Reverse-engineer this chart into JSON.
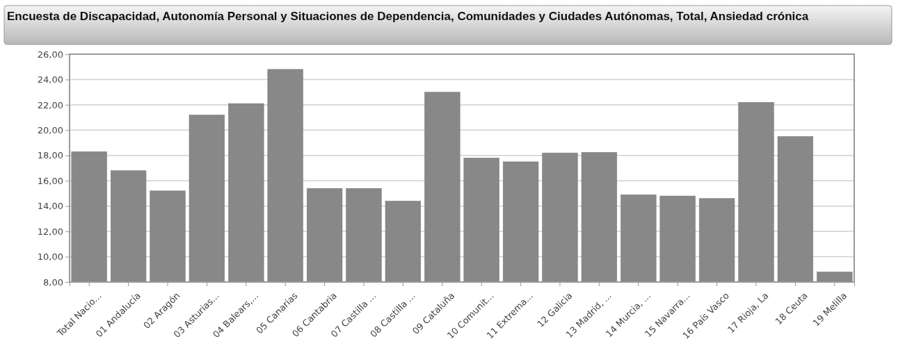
{
  "chart_data": {
    "type": "bar",
    "title": "Encuesta de Discapacidad, Autonomía Personal y Situaciones de Dependencia, Comunidades y Ciudades Autónomas, Total, Ansiedad crónica",
    "categories": [
      "Total Nacio...",
      "01 Andalucía",
      "02 Aragón",
      "03 Asturias...",
      "04 Balears,...",
      "05 Canarias",
      "06 Cantabria",
      "07 Castilla ...",
      "08 Castilla ...",
      "09 Cataluña",
      "10 Comunit...",
      "11 Extrema...",
      "12 Galicia",
      "13 Madrid, ...",
      "14 Murcia, ...",
      "15 Navarra...",
      "16 País Vasco",
      "17 Rioja, La",
      "18 Ceuta",
      "19 Melilla"
    ],
    "values": [
      18.3,
      16.8,
      15.2,
      21.2,
      22.1,
      24.8,
      15.4,
      15.4,
      14.4,
      23.0,
      17.8,
      17.5,
      18.2,
      18.25,
      14.9,
      14.8,
      14.6,
      22.2,
      19.5,
      8.8
    ],
    "color": "#888888",
    "ylim": [
      8,
      26
    ],
    "yticks": [
      {
        "value": 8,
        "label": "8,00"
      },
      {
        "value": 10,
        "label": "10,00"
      },
      {
        "value": 12,
        "label": "12,00"
      },
      {
        "value": 14,
        "label": "14,00"
      },
      {
        "value": 16,
        "label": "16,00"
      },
      {
        "value": 18,
        "label": "18,00"
      },
      {
        "value": 20,
        "label": "20,00"
      },
      {
        "value": 22,
        "label": "22,00"
      },
      {
        "value": 24,
        "label": "24,00"
      },
      {
        "value": 26,
        "label": "26,00"
      }
    ],
    "grid": "y"
  }
}
